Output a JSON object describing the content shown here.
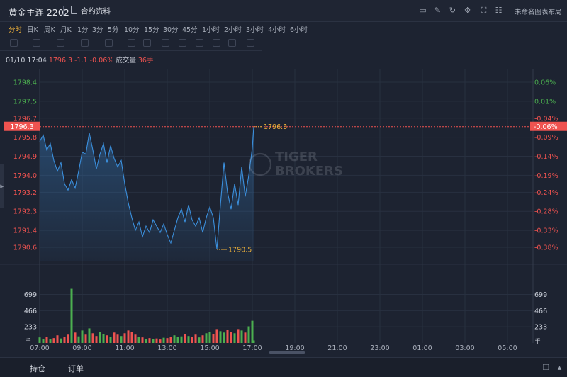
{
  "header": {
    "title": "黄金主连 2202",
    "doc_link": "合约资料",
    "layout_label": "未命名图表布局"
  },
  "timeframes": [
    "分时",
    "日K",
    "周K",
    "月K",
    "1分",
    "3分",
    "5分",
    "10分",
    "15分",
    "30分",
    "45分",
    "1小时",
    "2小时",
    "3小时",
    "4小时",
    "6小时"
  ],
  "info": {
    "datetime": "01/10 17:04",
    "price": "1796.3",
    "change": "-1.1",
    "change_pct": "-0.06%",
    "volume_label": "成交量",
    "volume": "36手"
  },
  "watermark": {
    "line1": "TIGER",
    "line2": "BROKERS"
  },
  "bottom_tabs": {
    "positions": "持仓",
    "orders": "订单"
  },
  "colors": {
    "up": "#4caf50",
    "down": "#ef5350",
    "line": "#3b8fdc",
    "accent": "#f0b23a"
  },
  "chart_data": {
    "type": "line",
    "price_axis_left": [
      "1798.4",
      "1797.5",
      "1796.7",
      "1795.8",
      "1794.9",
      "1794.0",
      "1793.2",
      "1792.3",
      "1791.4",
      "1790.6"
    ],
    "price_axis_right": [
      "0.06%",
      "0.01%",
      "-0.04%",
      "-0.09%",
      "-0.14%",
      "-0.19%",
      "-0.24%",
      "-0.28%",
      "-0.33%",
      "-0.38%"
    ],
    "ylim": [
      1790.6,
      1798.4
    ],
    "last_price": "1796.3",
    "last_pct": "-0.06%",
    "high_label": "1796.3",
    "low_label": "1790.5",
    "x_ticks": [
      "07:00",
      "09:00",
      "11:00",
      "13:00",
      "15:00",
      "17:00",
      "19:00",
      "21:00",
      "23:00",
      "01:00",
      "03:00",
      "05:00"
    ],
    "volume_ticks": [
      "699",
      "466",
      "233"
    ],
    "volume_unit": "手",
    "price_series": [
      [
        "07:00",
        1795.6
      ],
      [
        "07:10",
        1795.9
      ],
      [
        "07:20",
        1795.2
      ],
      [
        "07:30",
        1795.5
      ],
      [
        "07:40",
        1794.7
      ],
      [
        "07:50",
        1794.2
      ],
      [
        "08:00",
        1794.6
      ],
      [
        "08:10",
        1793.6
      ],
      [
        "08:20",
        1793.3
      ],
      [
        "08:30",
        1793.8
      ],
      [
        "08:40",
        1793.4
      ],
      [
        "08:50",
        1794.2
      ],
      [
        "09:00",
        1795.1
      ],
      [
        "09:10",
        1795.0
      ],
      [
        "09:20",
        1796.0
      ],
      [
        "09:30",
        1795.2
      ],
      [
        "09:40",
        1794.3
      ],
      [
        "09:50",
        1795.0
      ],
      [
        "10:00",
        1795.5
      ],
      [
        "10:10",
        1794.6
      ],
      [
        "10:20",
        1795.4
      ],
      [
        "10:30",
        1794.8
      ],
      [
        "10:40",
        1794.4
      ],
      [
        "10:50",
        1794.7
      ],
      [
        "11:00",
        1793.6
      ],
      [
        "11:10",
        1792.7
      ],
      [
        "11:20",
        1792.0
      ],
      [
        "11:30",
        1791.4
      ],
      [
        "11:40",
        1791.8
      ],
      [
        "11:50",
        1791.1
      ],
      [
        "12:00",
        1791.6
      ],
      [
        "12:10",
        1791.3
      ],
      [
        "12:20",
        1791.9
      ],
      [
        "12:30",
        1791.6
      ],
      [
        "12:40",
        1791.3
      ],
      [
        "12:50",
        1791.7
      ],
      [
        "13:00",
        1791.2
      ],
      [
        "13:10",
        1790.8
      ],
      [
        "13:20",
        1791.4
      ],
      [
        "13:30",
        1792.0
      ],
      [
        "13:40",
        1792.4
      ],
      [
        "13:50",
        1791.8
      ],
      [
        "14:00",
        1792.6
      ],
      [
        "14:10",
        1791.9
      ],
      [
        "14:20",
        1791.6
      ],
      [
        "14:30",
        1792.0
      ],
      [
        "14:40",
        1791.3
      ],
      [
        "14:50",
        1792.0
      ],
      [
        "15:00",
        1792.5
      ],
      [
        "15:10",
        1792.0
      ],
      [
        "15:20",
        1790.5
      ],
      [
        "15:30",
        1792.6
      ],
      [
        "15:40",
        1794.6
      ],
      [
        "15:50",
        1793.2
      ],
      [
        "16:00",
        1792.4
      ],
      [
        "16:10",
        1793.6
      ],
      [
        "16:20",
        1792.6
      ],
      [
        "16:30",
        1794.4
      ],
      [
        "16:40",
        1793.0
      ],
      [
        "16:50",
        1794.0
      ],
      [
        "17:00",
        1795.3
      ],
      [
        "17:04",
        1796.3
      ]
    ],
    "volume_series": [
      [
        "07:00",
        80
      ],
      [
        "07:10",
        60
      ],
      [
        "07:20",
        90
      ],
      [
        "07:30",
        55
      ],
      [
        "07:40",
        70
      ],
      [
        "07:50",
        110
      ],
      [
        "08:00",
        65
      ],
      [
        "08:10",
        85
      ],
      [
        "08:20",
        120
      ],
      [
        "08:30",
        780
      ],
      [
        "08:40",
        150
      ],
      [
        "08:50",
        95
      ],
      [
        "09:00",
        180
      ],
      [
        "09:10",
        120
      ],
      [
        "09:20",
        210
      ],
      [
        "09:30",
        140
      ],
      [
        "09:40",
        100
      ],
      [
        "09:50",
        160
      ],
      [
        "10:00",
        130
      ],
      [
        "10:10",
        110
      ],
      [
        "10:20",
        90
      ],
      [
        "10:30",
        150
      ],
      [
        "10:40",
        120
      ],
      [
        "10:50",
        100
      ],
      [
        "11:00",
        140
      ],
      [
        "11:10",
        180
      ],
      [
        "11:20",
        160
      ],
      [
        "11:30",
        120
      ],
      [
        "11:40",
        90
      ],
      [
        "11:50",
        80
      ],
      [
        "12:00",
        60
      ],
      [
        "12:10",
        70
      ],
      [
        "12:20",
        55
      ],
      [
        "12:30",
        65
      ],
      [
        "12:40",
        50
      ],
      [
        "12:50",
        75
      ],
      [
        "13:00",
        70
      ],
      [
        "13:10",
        90
      ],
      [
        "13:20",
        110
      ],
      [
        "13:30",
        85
      ],
      [
        "13:40",
        95
      ],
      [
        "13:50",
        130
      ],
      [
        "14:00",
        100
      ],
      [
        "14:10",
        90
      ],
      [
        "14:20",
        120
      ],
      [
        "14:30",
        80
      ],
      [
        "14:40",
        110
      ],
      [
        "14:50",
        140
      ],
      [
        "15:00",
        160
      ],
      [
        "15:10",
        130
      ],
      [
        "15:20",
        200
      ],
      [
        "15:30",
        170
      ],
      [
        "15:40",
        150
      ],
      [
        "15:50",
        190
      ],
      [
        "16:00",
        160
      ],
      [
        "16:10",
        140
      ],
      [
        "16:20",
        200
      ],
      [
        "16:30",
        180
      ],
      [
        "16:40",
        150
      ],
      [
        "16:50",
        240
      ],
      [
        "17:00",
        320
      ],
      [
        "17:04",
        36
      ]
    ]
  }
}
